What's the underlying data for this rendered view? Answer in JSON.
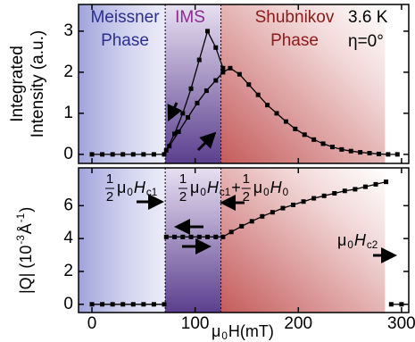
{
  "chart_data": [
    {
      "type": "line",
      "region_labels": [
        [
          "Meissner",
          "Phase"
        ],
        [
          "IMS"
        ],
        [
          "Shubnikov",
          "Phase"
        ]
      ],
      "boundaries": [
        71,
        125,
        284
      ],
      "annotations": [
        "3.6 K",
        "η=0°"
      ],
      "ylabel": [
        "Integrated",
        "Intensity (a.u.)"
      ],
      "xlim": [
        -13,
        307
      ],
      "xticks": [
        0,
        100,
        200,
        300
      ],
      "ylim": [
        -0.22,
        3.65
      ],
      "yticks": [
        0,
        1,
        2,
        3
      ],
      "series": [
        {
          "color": "#000000",
          "x": [
            72,
            80,
            88,
            96,
            104,
            112,
            120,
            127
          ],
          "values": [
            0.1,
            0.5,
            1.0,
            1.6,
            2.3,
            3.0,
            2.6,
            2.1
          ]
        },
        {
          "color": "#000000",
          "x": [
            0,
            10,
            20,
            30,
            40,
            50,
            60,
            70,
            75,
            84,
            93,
            102,
            111,
            120,
            127,
            134,
            143,
            152,
            161,
            170,
            179,
            188,
            197,
            206,
            215,
            224,
            233,
            242,
            251,
            260,
            269,
            278,
            287,
            296
          ],
          "values": [
            0,
            0,
            0,
            0,
            0,
            0,
            0,
            0,
            0.2,
            0.55,
            0.9,
            1.25,
            1.55,
            1.8,
            2.0,
            2.1,
            1.95,
            1.7,
            1.45,
            1.2,
            1.0,
            0.8,
            0.62,
            0.48,
            0.36,
            0.26,
            0.18,
            0.12,
            0.08,
            0.05,
            0.03,
            0.01,
            0,
            0
          ]
        }
      ]
    },
    {
      "type": "line",
      "boundaries": [
        71,
        125,
        284
      ],
      "annotations": [
        [
          "1",
          "2",
          "μ",
          "0",
          "H",
          "c1"
        ],
        [
          "1",
          "2",
          "μ",
          "0",
          "H",
          "c1",
          "+",
          "1",
          "2",
          "μ",
          "0",
          "H",
          "0"
        ],
        [
          "μ",
          "0",
          "H",
          "c2"
        ]
      ],
      "ylabel": [
        "|Q| (10",
        "-3",
        "Å",
        "-1",
        ")"
      ],
      "xlabel": [
        "μ",
        "0",
        "H(mT)"
      ],
      "xlim": [
        -13,
        307
      ],
      "xticks": [
        0,
        100,
        200,
        300
      ],
      "ylim": [
        -0.5,
        8.3
      ],
      "yticks": [
        0,
        2,
        4,
        6
      ],
      "series": [
        {
          "color": "#000000",
          "x": [
            0,
            10,
            20,
            30,
            40,
            50,
            60,
            70
          ],
          "values": [
            0,
            0,
            0,
            0,
            0,
            0,
            0,
            0
          ]
        },
        {
          "color": "#000000",
          "x": [
            72,
            80,
            88,
            96,
            104,
            112,
            120,
            127,
            135,
            145,
            155,
            165,
            175,
            185,
            195,
            205,
            215,
            225,
            235,
            245,
            255,
            265,
            275,
            285
          ],
          "values": [
            4.1,
            4.1,
            4.1,
            4.1,
            4.1,
            4.1,
            4.1,
            4.1,
            4.4,
            4.75,
            5.05,
            5.35,
            5.6,
            5.85,
            6.05,
            6.25,
            6.45,
            6.6,
            6.75,
            6.9,
            7.0,
            7.15,
            7.3,
            7.45
          ]
        },
        {
          "color": "#000000",
          "x": [
            290,
            300
          ],
          "values": [
            0,
            0
          ]
        }
      ]
    }
  ]
}
